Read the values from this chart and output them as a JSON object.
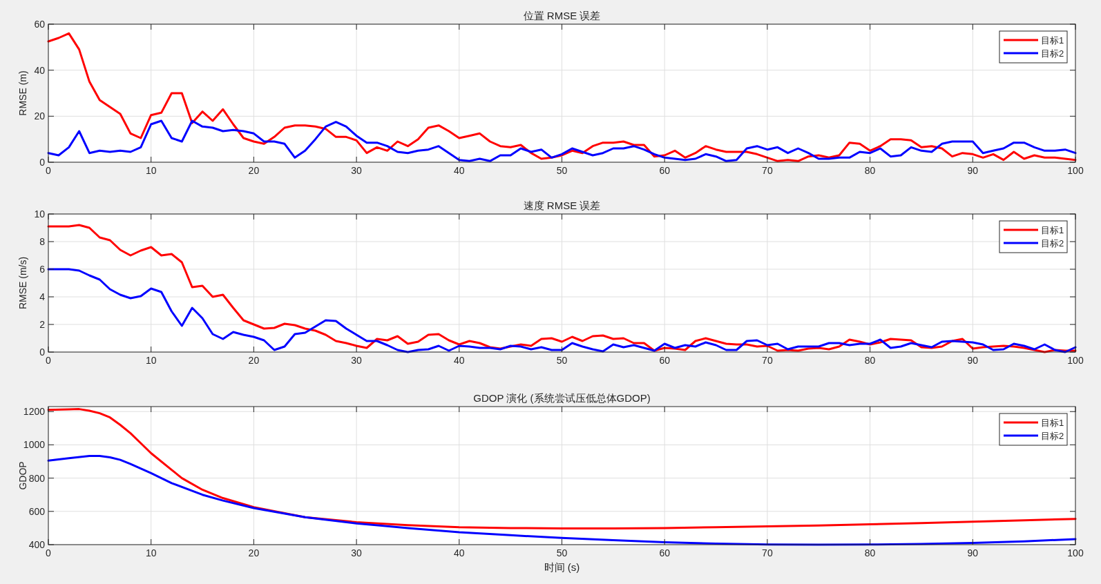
{
  "chart_data": [
    {
      "type": "line",
      "title": "位置 RMSE 误差",
      "ylabel": "RMSE (m)",
      "x": [
        0,
        1,
        2,
        3,
        4,
        5,
        6,
        7,
        8,
        9,
        10,
        11,
        12,
        13,
        14,
        15,
        16,
        17,
        18,
        19,
        20,
        21,
        22,
        23,
        24,
        25,
        26,
        27,
        28,
        29,
        30,
        31,
        32,
        33,
        34,
        35,
        36,
        37,
        38,
        39,
        40,
        41,
        42,
        43,
        44,
        45,
        46,
        47,
        48,
        49,
        50,
        51,
        52,
        53,
        54,
        55,
        56,
        57,
        58,
        59,
        60,
        61,
        62,
        63,
        64,
        65,
        66,
        67,
        68,
        69,
        70,
        71,
        72,
        73,
        74,
        75,
        76,
        77,
        78,
        79,
        80,
        81,
        82,
        83,
        84,
        85,
        86,
        87,
        88,
        89,
        90,
        91,
        92,
        93,
        94,
        95,
        96,
        97,
        98,
        99,
        100
      ],
      "xlim": [
        0,
        100
      ],
      "xticks": [
        0,
        10,
        20,
        30,
        40,
        50,
        60,
        70,
        80,
        90,
        100
      ],
      "ylim": [
        0,
        60
      ],
      "yticks": [
        0,
        20,
        40,
        60
      ],
      "grid": true,
      "legend": "top right",
      "line_style": "solid",
      "marker": "none",
      "series": [
        {
          "name": "目标1",
          "color": "#ff0000",
          "values": [
            52.5,
            54,
            56,
            49,
            35,
            27,
            24,
            21,
            12.5,
            10.5,
            20.5,
            21.5,
            30,
            30,
            17,
            22,
            18,
            23,
            16.5,
            10.5,
            9,
            8,
            11,
            15,
            16,
            16,
            15.5,
            14.5,
            11,
            11,
            9.5,
            4,
            6.5,
            5,
            9,
            7,
            10,
            15,
            16,
            13.5,
            10.5,
            11.5,
            12.5,
            9,
            7,
            6.5,
            7.5,
            4,
            1.5,
            2,
            3,
            5,
            4,
            7,
            8.5,
            8.5,
            9,
            7.5,
            7.5,
            2.5,
            3,
            5,
            2,
            4,
            7,
            5.5,
            4.5,
            4.5,
            4.5,
            3.5,
            2,
            0.5,
            1,
            0.5,
            2.5,
            3,
            2,
            3,
            8.5,
            8,
            5,
            7,
            10,
            10,
            9.5,
            6.5,
            7,
            6,
            2.5,
            4,
            3.5,
            2,
            3.5,
            1,
            4.5,
            1.5,
            3,
            2,
            2,
            1.5,
            1
          ]
        },
        {
          "name": "目标2",
          "color": "#0000ff",
          "values": [
            4,
            3,
            6.5,
            13.5,
            4,
            5,
            4.5,
            5,
            4.5,
            6.5,
            16.5,
            18,
            10.5,
            9,
            18,
            15.5,
            15,
            13.5,
            14,
            13.5,
            12.5,
            9,
            9,
            8,
            2,
            5,
            10,
            15.5,
            17.5,
            15.5,
            11.5,
            8.5,
            8.5,
            7,
            4.5,
            4,
            5,
            5.5,
            7,
            4,
            1,
            0.5,
            1.5,
            0.5,
            3,
            3,
            6,
            4.5,
            5.5,
            2,
            3.5,
            6,
            4.5,
            3,
            4,
            6,
            6,
            7,
            5.5,
            3.5,
            2,
            1.5,
            1,
            1.5,
            3.5,
            2.5,
            0.5,
            1,
            6,
            7,
            5.5,
            6.5,
            4,
            6,
            4,
            1.5,
            1.5,
            2,
            2,
            4.5,
            4,
            6,
            2.5,
            3,
            6.5,
            5,
            4.5,
            8,
            9,
            9,
            9,
            4,
            5,
            6,
            8.5,
            8.5,
            6.5,
            5,
            5,
            5.5,
            4
          ]
        }
      ]
    },
    {
      "type": "line",
      "title": "速度 RMSE 误差",
      "ylabel": "RMSE (m/s)",
      "x": [
        0,
        1,
        2,
        3,
        4,
        5,
        6,
        7,
        8,
        9,
        10,
        11,
        12,
        13,
        14,
        15,
        16,
        17,
        18,
        19,
        20,
        21,
        22,
        23,
        24,
        25,
        26,
        27,
        28,
        29,
        30,
        31,
        32,
        33,
        34,
        35,
        36,
        37,
        38,
        39,
        40,
        41,
        42,
        43,
        44,
        45,
        46,
        47,
        48,
        49,
        50,
        51,
        52,
        53,
        54,
        55,
        56,
        57,
        58,
        59,
        60,
        61,
        62,
        63,
        64,
        65,
        66,
        67,
        68,
        69,
        70,
        71,
        72,
        73,
        74,
        75,
        76,
        77,
        78,
        79,
        80,
        81,
        82,
        83,
        84,
        85,
        86,
        87,
        88,
        89,
        90,
        91,
        92,
        93,
        94,
        95,
        96,
        97,
        98,
        99,
        100
      ],
      "xlim": [
        0,
        100
      ],
      "xticks": [
        0,
        10,
        20,
        30,
        40,
        50,
        60,
        70,
        80,
        90,
        100
      ],
      "ylim": [
        0,
        10
      ],
      "yticks": [
        0,
        2,
        4,
        6,
        8,
        10
      ],
      "grid": true,
      "legend": "top right",
      "line_style": "solid",
      "marker": "none",
      "series": [
        {
          "name": "目标1",
          "color": "#ff0000",
          "values": [
            9.1,
            9.1,
            9.1,
            9.2,
            9,
            8.3,
            8.1,
            7.4,
            7,
            7.35,
            7.6,
            7,
            7.1,
            6.5,
            4.7,
            4.8,
            4,
            4.15,
            3.2,
            2.3,
            2,
            1.7,
            1.75,
            2.05,
            1.95,
            1.7,
            1.55,
            1.25,
            0.8,
            0.65,
            0.45,
            0.3,
            0.95,
            0.85,
            1.15,
            0.6,
            0.75,
            1.25,
            1.3,
            0.85,
            0.55,
            0.8,
            0.65,
            0.35,
            0.25,
            0.4,
            0.55,
            0.45,
            0.95,
            1,
            0.75,
            1.1,
            0.8,
            1.15,
            1.2,
            0.95,
            1,
            0.65,
            0.65,
            0.1,
            0.3,
            0.25,
            0.15,
            0.8,
            1,
            0.8,
            0.6,
            0.55,
            0.55,
            0.4,
            0.45,
            0.1,
            0.15,
            0.1,
            0.25,
            0.3,
            0.2,
            0.4,
            0.9,
            0.75,
            0.55,
            0.7,
            0.95,
            0.9,
            0.85,
            0.35,
            0.3,
            0.4,
            0.8,
            0.95,
            0.25,
            0.35,
            0.4,
            0.45,
            0.4,
            0.3,
            0.15,
            0,
            0.15,
            0.1,
            0.1
          ]
        },
        {
          "name": "目标2",
          "color": "#0000ff",
          "values": [
            6,
            6,
            6,
            5.9,
            5.55,
            5.25,
            4.55,
            4.15,
            3.9,
            4.05,
            4.6,
            4.35,
            2.95,
            1.9,
            3.2,
            2.45,
            1.3,
            0.95,
            1.45,
            1.25,
            1.1,
            0.85,
            0.15,
            0.4,
            1.3,
            1.4,
            1.85,
            2.3,
            2.25,
            1.7,
            1.25,
            0.8,
            0.8,
            0.5,
            0.15,
            0,
            0.15,
            0.2,
            0.45,
            0.1,
            0.45,
            0.4,
            0.3,
            0.3,
            0.2,
            0.45,
            0.4,
            0.2,
            0.35,
            0.15,
            0.15,
            0.65,
            0.4,
            0.2,
            0.05,
            0.55,
            0.35,
            0.5,
            0.3,
            0.1,
            0.6,
            0.3,
            0.5,
            0.4,
            0.7,
            0.5,
            0.15,
            0.15,
            0.8,
            0.85,
            0.5,
            0.6,
            0.2,
            0.4,
            0.4,
            0.4,
            0.65,
            0.65,
            0.5,
            0.6,
            0.6,
            0.9,
            0.3,
            0.4,
            0.65,
            0.5,
            0.35,
            0.75,
            0.8,
            0.75,
            0.7,
            0.55,
            0.15,
            0.2,
            0.6,
            0.45,
            0.2,
            0.55,
            0.15,
            0,
            0.35
          ]
        }
      ]
    },
    {
      "type": "line",
      "title": "GDOP 演化 (系统尝试压低总体GDOP)",
      "xlabel": "时间 (s)",
      "ylabel": "GDOP",
      "xlim": [
        0,
        100
      ],
      "xticks": [
        0,
        10,
        20,
        30,
        40,
        50,
        60,
        70,
        80,
        90,
        100
      ],
      "ylim": [
        400,
        1230
      ],
      "yticks": [
        400,
        600,
        800,
        1000,
        1200
      ],
      "grid": true,
      "legend": "top right",
      "line_style": "solid",
      "marker": "none",
      "series": [
        {
          "name": "目标1",
          "color": "#ff0000",
          "x": [
            0,
            2,
            3,
            4,
            5,
            6,
            7,
            8,
            9,
            10,
            12,
            13,
            15,
            17,
            20,
            25,
            30,
            35,
            40,
            45,
            50,
            55,
            60,
            65,
            70,
            75,
            80,
            85,
            90,
            95,
            100
          ],
          "values": [
            1210,
            1213,
            1215,
            1205,
            1190,
            1165,
            1120,
            1070,
            1010,
            950,
            850,
            800,
            730,
            680,
            625,
            565,
            535,
            517,
            505,
            500,
            498,
            498,
            500,
            505,
            510,
            515,
            522,
            530,
            538,
            546,
            555
          ]
        },
        {
          "name": "目标2",
          "color": "#0000ff",
          "x": [
            0,
            2,
            4,
            5,
            6,
            7,
            8,
            10,
            12,
            15,
            17,
            20,
            25,
            30,
            35,
            40,
            45,
            50,
            55,
            60,
            65,
            70,
            75,
            80,
            85,
            90,
            95,
            100
          ],
          "values": [
            905,
            920,
            933,
            933,
            925,
            910,
            885,
            830,
            770,
            700,
            665,
            620,
            565,
            528,
            500,
            475,
            457,
            440,
            427,
            415,
            406,
            401,
            400,
            401,
            404,
            410,
            420,
            433
          ]
        }
      ]
    }
  ]
}
